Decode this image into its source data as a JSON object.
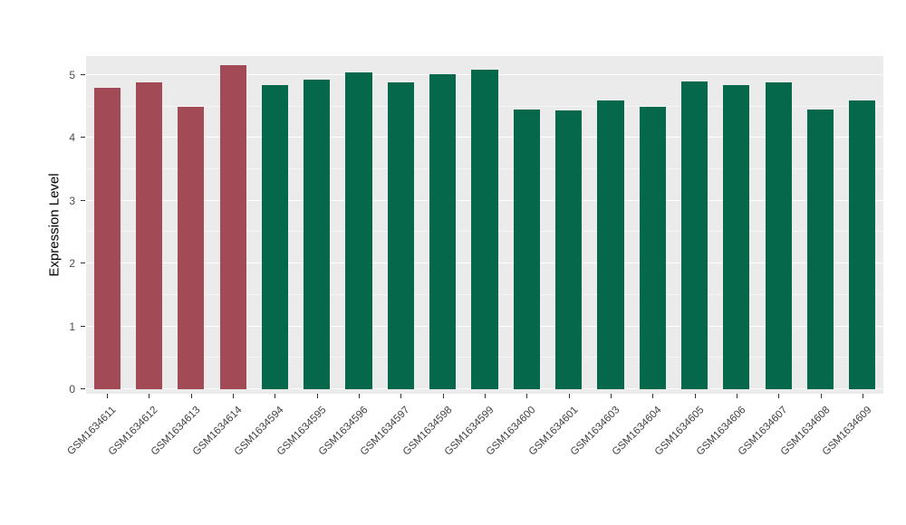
{
  "chart_data": {
    "type": "bar",
    "title": "",
    "xlabel": "",
    "ylabel": "Expression Level",
    "ylim": [
      0,
      5.3
    ],
    "yticks": [
      0,
      1,
      2,
      3,
      4,
      5
    ],
    "yticks_minor": [
      0.5,
      1.5,
      2.5,
      3.5,
      4.5
    ],
    "grid": "on",
    "legend": "none",
    "categories": [
      "GSM1634611",
      "GSM1634612",
      "GSM1634613",
      "GSM1634614",
      "GSM1634594",
      "GSM1634595",
      "GSM1634596",
      "GSM1634597",
      "GSM1634598",
      "GSM1634599",
      "GSM1634600",
      "GSM1634601",
      "GSM1634603",
      "GSM1634604",
      "GSM1634605",
      "GSM1634606",
      "GSM1634607",
      "GSM1634608",
      "GSM1634609"
    ],
    "values": [
      4.8,
      4.88,
      4.5,
      5.15,
      4.84,
      4.93,
      5.04,
      4.88,
      5.01,
      5.08,
      4.45,
      4.43,
      4.59,
      4.5,
      4.9,
      4.84,
      4.88,
      4.45,
      4.59
    ],
    "bar_groups": [
      0,
      0,
      0,
      0,
      1,
      1,
      1,
      1,
      1,
      1,
      1,
      1,
      1,
      1,
      1,
      1,
      1,
      1,
      1
    ],
    "group_colors": [
      "#A24B57",
      "#06684B"
    ],
    "panel_bg": "#EBEBEB",
    "grid_color": "#FFFFFF",
    "axis_text_color": "#4D4D4D"
  }
}
